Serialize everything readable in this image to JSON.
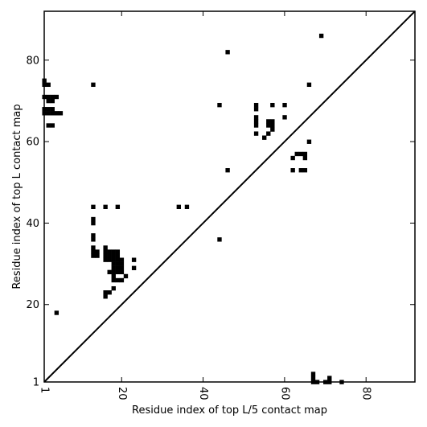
{
  "chart_data": {
    "type": "heatmap",
    "title": "",
    "xlabel": "Residue index of top L/5 contact map",
    "ylabel": "Residue index of top L contact map",
    "xlim": [
      1,
      92
    ],
    "ylim": [
      1,
      92
    ],
    "x_ticks": [
      1,
      20,
      40,
      60,
      80
    ],
    "y_ticks": [
      1,
      20,
      40,
      60,
      80
    ],
    "x_tick_labels": [
      "1",
      "20",
      "40",
      "60",
      "80"
    ],
    "y_tick_labels": [
      "1",
      "20",
      "40",
      "60",
      "80"
    ],
    "grid": false,
    "diagonal": {
      "from": [
        1,
        1
      ],
      "to": [
        92,
        92
      ]
    },
    "cell_color": "#000000",
    "line_color": "#000000",
    "upper_triangle_contacts": [
      [
        1,
        74
      ],
      [
        1,
        75
      ],
      [
        2,
        74
      ],
      [
        1,
        71
      ],
      [
        2,
        71
      ],
      [
        3,
        71
      ],
      [
        4,
        71
      ],
      [
        2,
        70
      ],
      [
        3,
        70
      ],
      [
        1,
        68
      ],
      [
        2,
        68
      ],
      [
        3,
        68
      ],
      [
        1,
        67
      ],
      [
        2,
        67
      ],
      [
        3,
        67
      ],
      [
        4,
        67
      ],
      [
        5,
        67
      ],
      [
        2,
        64
      ],
      [
        3,
        64
      ],
      [
        13,
        74
      ],
      [
        13,
        44
      ],
      [
        13,
        41
      ],
      [
        13,
        40
      ],
      [
        13,
        37
      ],
      [
        13,
        36
      ],
      [
        13,
        34
      ],
      [
        13,
        33
      ],
      [
        14,
        33
      ],
      [
        13,
        32
      ],
      [
        14,
        32
      ],
      [
        16,
        44
      ],
      [
        19,
        44
      ],
      [
        16,
        34
      ],
      [
        16,
        33
      ],
      [
        17,
        33
      ],
      [
        18,
        33
      ],
      [
        19,
        33
      ],
      [
        16,
        32
      ],
      [
        17,
        32
      ],
      [
        18,
        32
      ],
      [
        19,
        32
      ],
      [
        16,
        31
      ],
      [
        17,
        31
      ],
      [
        18,
        31
      ],
      [
        19,
        31
      ],
      [
        20,
        31
      ],
      [
        18,
        30
      ],
      [
        19,
        30
      ],
      [
        20,
        30
      ],
      [
        18,
        29
      ],
      [
        19,
        29
      ],
      [
        20,
        29
      ],
      [
        17,
        28
      ],
      [
        18,
        28
      ],
      [
        19,
        28
      ],
      [
        20,
        28
      ],
      [
        18,
        27
      ],
      [
        21,
        27
      ],
      [
        18,
        26
      ],
      [
        19,
        26
      ],
      [
        20,
        26
      ],
      [
        18,
        24
      ],
      [
        16,
        23
      ],
      [
        17,
        23
      ],
      [
        16,
        22
      ],
      [
        23,
        31
      ],
      [
        23,
        29
      ],
      [
        34,
        44
      ],
      [
        36,
        44
      ],
      [
        44,
        36
      ],
      [
        44,
        69
      ],
      [
        46,
        82
      ],
      [
        46,
        53
      ],
      [
        53,
        69
      ],
      [
        53,
        68
      ],
      [
        53,
        66
      ],
      [
        53,
        65
      ],
      [
        53,
        64
      ],
      [
        53,
        62
      ],
      [
        55,
        61
      ],
      [
        56,
        62
      ],
      [
        56,
        65
      ],
      [
        57,
        65
      ],
      [
        56,
        64
      ],
      [
        57,
        64
      ],
      [
        57,
        63
      ],
      [
        57,
        69
      ],
      [
        60,
        69
      ],
      [
        60,
        66
      ],
      [
        62,
        56
      ],
      [
        62,
        53
      ],
      [
        63,
        57
      ],
      [
        64,
        57
      ],
      [
        65,
        57
      ],
      [
        64,
        53
      ],
      [
        65,
        53
      ],
      [
        65,
        56
      ],
      [
        66,
        74
      ],
      [
        66,
        60
      ],
      [
        69,
        86
      ]
    ],
    "lower_triangle_contacts": [
      [
        4,
        18
      ],
      [
        67,
        3
      ],
      [
        67,
        2
      ],
      [
        67,
        1
      ],
      [
        68,
        1
      ],
      [
        70,
        1
      ],
      [
        71,
        1
      ],
      [
        71,
        2
      ],
      [
        74,
        1
      ]
    ]
  }
}
